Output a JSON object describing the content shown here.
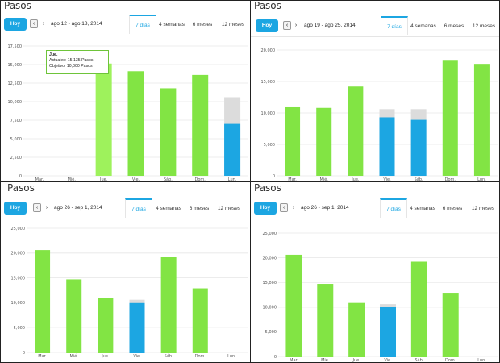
{
  "panels": [
    {
      "title": "Pasos",
      "toolbar": {
        "today_label": "Hoy",
        "prev_icon": "chevron-left-icon",
        "next_icon": "chevron-right-icon",
        "date_range": "ago 12 - ago 18, 2014"
      },
      "tabs": [
        {
          "label": "7 días",
          "active": true
        },
        {
          "label": "4 semanas",
          "active": false
        },
        {
          "label": "6 meses",
          "active": false
        },
        {
          "label": "12 meses",
          "active": false
        }
      ],
      "tooltip": {
        "day": "Jue.",
        "actual_line": "Actuales: 15,135 Pasos",
        "goal_line": "Objetivo: 10,000 Pasos"
      },
      "chart_data": {
        "type": "bar",
        "categories": [
          "Mar.",
          "Mié.",
          "Jue.",
          "Vie.",
          "Sáb.",
          "Dom.",
          "Lun."
        ],
        "series": [
          {
            "values": [
              0,
              0,
              15135,
              14100,
              11800,
              13600,
              7000
            ]
          },
          {
            "values": [
              0,
              0,
              0,
              0,
              0,
              0,
              10600
            ]
          }
        ],
        "highlight_index": 2,
        "today_index": 6,
        "ylim": [
          0,
          17500
        ],
        "yticks": [
          0,
          2500,
          5000,
          7500,
          10000,
          12500,
          15000,
          17500
        ],
        "ytick_labels": [
          "0",
          "2,500",
          "5,000",
          "7,500",
          "10,000",
          "12,500",
          "15,000",
          "17,500"
        ]
      }
    },
    {
      "title": "Pasos",
      "toolbar": {
        "today_label": "Hoy",
        "prev_icon": "chevron-left-icon",
        "next_icon": "chevron-right-icon",
        "date_range": "ago 19 - ago 25, 2014"
      },
      "tabs": [
        {
          "label": "7 días",
          "active": true
        },
        {
          "label": "4 semanas",
          "active": false
        },
        {
          "label": "6 meses",
          "active": false
        },
        {
          "label": "12 meses",
          "active": false
        }
      ],
      "chart_data": {
        "type": "bar",
        "categories": [
          "Mar.",
          "Mié.",
          "Jue.",
          "Vie.",
          "Sáb.",
          "Dom.",
          "Lun."
        ],
        "series": [
          {
            "values": [
              10900,
              10800,
              14200,
              9300,
              8900,
              18300,
              17800
            ]
          },
          {
            "values": [
              0,
              0,
              0,
              10600,
              10600,
              0,
              0
            ]
          }
        ],
        "blue_indexes": [
          3,
          4
        ],
        "ylim": [
          0,
          20000
        ],
        "yticks": [
          0,
          5000,
          10000,
          15000,
          20000
        ],
        "ytick_labels": [
          "0",
          "5,000",
          "10,000",
          "15,000",
          "20,000"
        ]
      }
    },
    {
      "title": "Pasos",
      "toolbar": {
        "today_label": "Hoy",
        "prev_icon": "chevron-left-icon",
        "next_icon": "chevron-right-icon",
        "date_range": "ago 26 - sep 1, 2014"
      },
      "tabs": [
        {
          "label": "7 días",
          "active": true
        },
        {
          "label": "4 semanas",
          "active": false
        },
        {
          "label": "6 meses",
          "active": false
        },
        {
          "label": "12 meses",
          "active": false
        }
      ],
      "chart_data": {
        "type": "bar",
        "categories": [
          "Mar.",
          "Mié.",
          "Jue.",
          "Vie.",
          "Sáb.",
          "Dom.",
          "Lun."
        ],
        "series": [
          {
            "values": [
              20600,
              14700,
              11000,
              10100,
              19200,
              12900,
              0
            ]
          },
          {
            "values": [
              0,
              0,
              0,
              10600,
              0,
              0,
              0
            ]
          }
        ],
        "blue_indexes": [
          3
        ],
        "ylim": [
          0,
          25000
        ],
        "yticks": [
          0,
          5000,
          10000,
          15000,
          20000,
          25000
        ],
        "ytick_labels": [
          "0",
          "5,000",
          "10,000",
          "15,000",
          "20,000",
          "25,000"
        ]
      }
    },
    {
      "title": "Pasos",
      "toolbar": {
        "today_label": "Hoy",
        "prev_icon": "chevron-left-icon",
        "next_icon": "chevron-right-icon",
        "date_range": "ago 26 - sep 1, 2014"
      },
      "tabs": [
        {
          "label": "7 días",
          "active": true
        },
        {
          "label": "4 semanas",
          "active": false
        },
        {
          "label": "6 meses",
          "active": false
        },
        {
          "label": "12 meses",
          "active": false
        }
      ],
      "chart_data": {
        "type": "bar",
        "categories": [
          "Mar.",
          "Mié.",
          "Jue.",
          "Vie.",
          "Sáb.",
          "Dom.",
          "Lun."
        ],
        "series": [
          {
            "values": [
              20600,
              14700,
              11000,
              10100,
              19200,
              12900,
              0
            ]
          },
          {
            "values": [
              0,
              0,
              0,
              10600,
              0,
              0,
              0
            ]
          }
        ],
        "blue_indexes": [
          3
        ],
        "ylim": [
          0,
          25000
        ],
        "yticks": [
          0,
          5000,
          10000,
          15000,
          20000,
          25000
        ],
        "ytick_labels": [
          "0",
          "5,000",
          "10,000",
          "15,000",
          "20,000",
          "25,000"
        ]
      }
    }
  ],
  "colors": {
    "bar_green": "#82e444",
    "bar_highlight": "#9ef25c",
    "bar_blue": "#1ca6e2",
    "goal_gray": "#dcdcdc",
    "grid": "#e6e6e6",
    "accent": "#1ca6e2"
  }
}
